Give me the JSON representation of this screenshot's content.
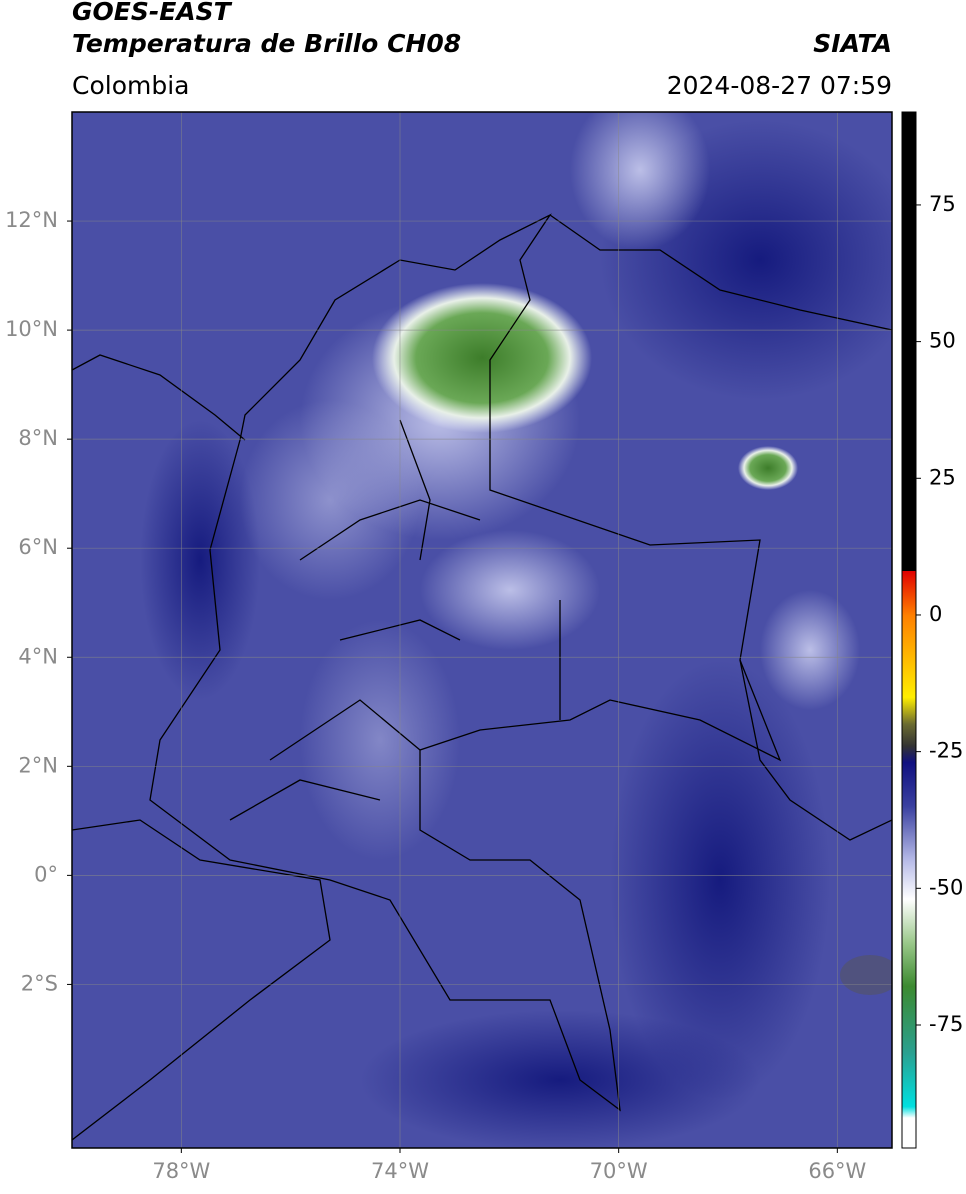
{
  "header": {
    "title": "GOES-EAST",
    "subtitle": "Temperatura de Brillo CH08",
    "brand": "SIATA",
    "region": "Colombia",
    "timestamp": "2024-08-27 07:59"
  },
  "map": {
    "xlim": [
      -80,
      -65
    ],
    "ylim": [
      -5,
      14
    ],
    "xticks": [
      {
        "value": -78,
        "label": "78°W"
      },
      {
        "value": -74,
        "label": "74°W"
      },
      {
        "value": -70,
        "label": "70°W"
      },
      {
        "value": -66,
        "label": "66°W"
      }
    ],
    "yticks": [
      {
        "value": 12,
        "label": "12°N"
      },
      {
        "value": 10,
        "label": "10°N"
      },
      {
        "value": 8,
        "label": "8°N"
      },
      {
        "value": 6,
        "label": "6°N"
      },
      {
        "value": 4,
        "label": "4°N"
      },
      {
        "value": 2,
        "label": "2°N"
      },
      {
        "value": 0,
        "label": "0°"
      },
      {
        "value": -2,
        "label": "2°S"
      }
    ],
    "grid": true
  },
  "colorbar": {
    "lim": [
      -97.5,
      92
    ],
    "ticks": [
      75,
      50,
      25,
      0,
      -25,
      -50,
      -75
    ]
  }
}
